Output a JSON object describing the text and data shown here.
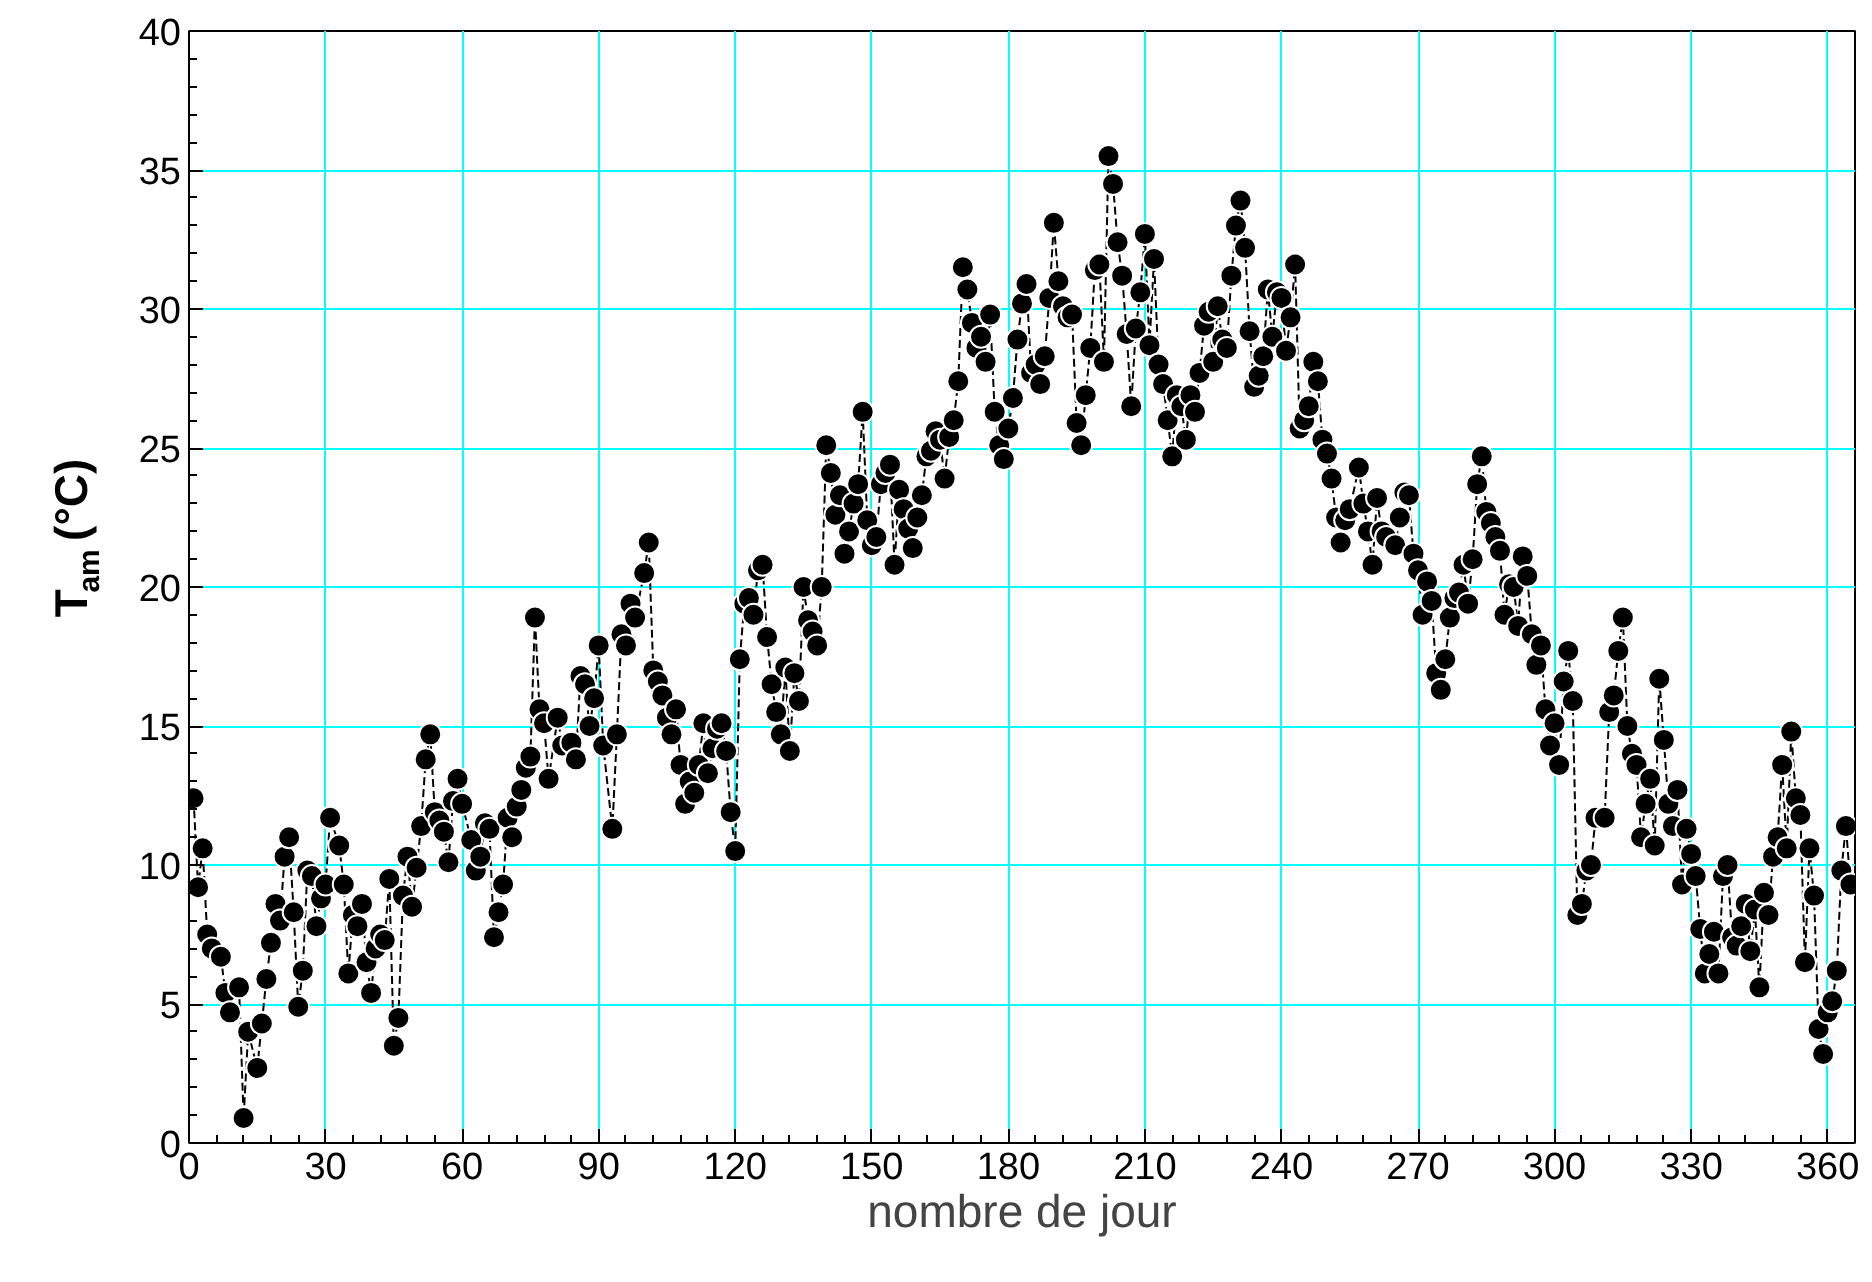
{
  "chart_data": {
    "type": "line",
    "xlabel": "nombre de jour",
    "ylabel": "T$_{am}$ (°C)",
    "xlim": [
      0,
      366
    ],
    "ylim": [
      0,
      40
    ],
    "xticks": [
      0,
      30,
      60,
      90,
      120,
      150,
      180,
      210,
      240,
      270,
      300,
      330,
      360
    ],
    "yticks": [
      0,
      5,
      10,
      15,
      20,
      25,
      30,
      35,
      40
    ],
    "grid": true,
    "marker": "circle",
    "line_style": "dashed",
    "series": [
      {
        "color": "#000000",
        "x": [
          1,
          2,
          3,
          4,
          5,
          7,
          8,
          9,
          11,
          12,
          13,
          15,
          16,
          17,
          18,
          19,
          20,
          21,
          22,
          23,
          24,
          25,
          26,
          27,
          28,
          29,
          30,
          31,
          33,
          34,
          35,
          36,
          37,
          38,
          39,
          40,
          41,
          42,
          43,
          44,
          45,
          46,
          47,
          48,
          49,
          50,
          51,
          52,
          53,
          54,
          55,
          56,
          57,
          58,
          59,
          60,
          62,
          63,
          64,
          65,
          66,
          67,
          68,
          69,
          70,
          71,
          72,
          73,
          74,
          75,
          76,
          77,
          78,
          79,
          81,
          82,
          84,
          85,
          86,
          87,
          88,
          89,
          90,
          91,
          93,
          94,
          95,
          96,
          97,
          98,
          100,
          101,
          102,
          103,
          104,
          105,
          106,
          107,
          108,
          109,
          110,
          111,
          112,
          113,
          114,
          115,
          116,
          117,
          118,
          119,
          120,
          121,
          122,
          123,
          124,
          125,
          126,
          127,
          128,
          129,
          130,
          131,
          132,
          133,
          134,
          135,
          136,
          137,
          138,
          139,
          140,
          141,
          142,
          143,
          144,
          145,
          146,
          147,
          148,
          149,
          150,
          151,
          152,
          153,
          154,
          155,
          156,
          157,
          158,
          159,
          160,
          161,
          162,
          163,
          164,
          165,
          166,
          167,
          168,
          169,
          170,
          171,
          172,
          173,
          174,
          175,
          176,
          177,
          178,
          179,
          180,
          181,
          182,
          183,
          184,
          185,
          186,
          187,
          188,
          189,
          190,
          191,
          192,
          193,
          194,
          195,
          196,
          197,
          198,
          199,
          200,
          201,
          202,
          203,
          204,
          205,
          206,
          207,
          208,
          209,
          210,
          211,
          212,
          213,
          214,
          215,
          216,
          217,
          218,
          219,
          220,
          221,
          222,
          223,
          224,
          225,
          226,
          227,
          228,
          229,
          230,
          231,
          232,
          233,
          234,
          235,
          236,
          237,
          238,
          239,
          240,
          241,
          242,
          243,
          244,
          245,
          246,
          247,
          248,
          249,
          250,
          251,
          252,
          253,
          254,
          255,
          257,
          258,
          259,
          260,
          261,
          262,
          263,
          265,
          266,
          267,
          268,
          269,
          270,
          271,
          272,
          273,
          274,
          275,
          276,
          277,
          278,
          279,
          280,
          281,
          282,
          283,
          284,
          285,
          286,
          287,
          288,
          289,
          290,
          291,
          292,
          293,
          294,
          295,
          296,
          297,
          298,
          299,
          300,
          301,
          302,
          303,
          304,
          305,
          306,
          307,
          308,
          309,
          311,
          312,
          313,
          314,
          315,
          316,
          317,
          318,
          319,
          320,
          321,
          322,
          323,
          324,
          325,
          326,
          327,
          328,
          329,
          330,
          331,
          332,
          333,
          334,
          335,
          336,
          337,
          338,
          339,
          340,
          341,
          342,
          343,
          344,
          345,
          346,
          347,
          348,
          349,
          350,
          351,
          352,
          353,
          354,
          355,
          356,
          357,
          358,
          359,
          360,
          361,
          362,
          363,
          364,
          365
        ],
        "values": [
          12.4,
          9.2,
          10.6,
          7.5,
          7.0,
          6.7,
          5.4,
          4.7,
          5.6,
          0.9,
          4.0,
          2.7,
          4.3,
          5.9,
          7.2,
          8.6,
          8.0,
          10.3,
          11.0,
          8.3,
          4.9,
          6.2,
          9.8,
          9.6,
          7.8,
          8.8,
          9.3,
          11.7,
          10.7,
          9.3,
          6.1,
          8.2,
          7.8,
          8.6,
          6.5,
          5.4,
          7.0,
          7.5,
          7.3,
          9.5,
          3.5,
          4.5,
          8.9,
          10.3,
          8.5,
          9.9,
          11.4,
          13.8,
          14.7,
          11.9,
          11.6,
          11.2,
          10.1,
          12.3,
          13.1,
          12.2,
          10.9,
          9.8,
          10.3,
          11.5,
          11.3,
          7.4,
          8.3,
          9.3,
          11.7,
          11.0,
          12.1,
          12.7,
          13.5,
          13.9,
          18.9,
          15.6,
          15.1,
          13.1,
          15.3,
          14.3,
          14.4,
          13.8,
          16.8,
          16.5,
          15.0,
          16.0,
          17.9,
          14.3,
          11.3,
          14.7,
          18.3,
          17.9,
          19.4,
          18.9,
          20.5,
          21.6,
          17.0,
          16.6,
          16.1,
          15.3,
          14.7,
          15.6,
          13.6,
          12.2,
          13.0,
          12.6,
          13.6,
          15.1,
          13.3,
          14.2,
          14.9,
          15.1,
          14.1,
          11.9,
          10.5,
          17.4,
          19.4,
          19.6,
          19.0,
          20.6,
          20.8,
          18.2,
          16.5,
          15.5,
          14.7,
          17.1,
          14.1,
          16.9,
          15.9,
          20.0,
          18.8,
          18.4,
          17.9,
          20.0,
          25.1,
          24.1,
          22.6,
          23.3,
          21.2,
          22.0,
          23.0,
          23.7,
          26.3,
          22.4,
          21.5,
          21.8,
          23.7,
          24.1,
          24.4,
          20.8,
          23.5,
          22.8,
          22.1,
          21.4,
          22.5,
          23.3,
          24.7,
          24.9,
          25.6,
          25.3,
          23.9,
          25.4,
          26.0,
          27.4,
          31.5,
          30.7,
          29.5,
          28.6,
          29.0,
          28.1,
          29.8,
          26.3,
          25.1,
          24.6,
          25.7,
          26.8,
          28.9,
          30.2,
          30.9,
          27.7,
          28.0,
          27.3,
          28.3,
          30.4,
          33.1,
          31.0,
          30.1,
          29.7,
          29.8,
          25.9,
          25.1,
          26.9,
          28.6,
          31.4,
          31.6,
          28.1,
          35.5,
          34.5,
          32.4,
          31.2,
          29.1,
          26.5,
          29.3,
          30.6,
          32.7,
          28.7,
          31.8,
          28.0,
          27.3,
          26.0,
          24.7,
          26.9,
          26.5,
          25.3,
          26.9,
          26.3,
          27.7,
          29.4,
          29.9,
          28.1,
          30.1,
          28.9,
          28.6,
          31.2,
          33.0,
          33.9,
          32.2,
          29.2,
          27.2,
          27.6,
          28.3,
          30.7,
          29.0,
          30.6,
          30.4,
          28.5,
          29.7,
          31.6,
          25.7,
          26.0,
          26.5,
          28.1,
          27.4,
          25.3,
          24.8,
          23.9,
          22.5,
          21.6,
          22.4,
          22.8,
          24.3,
          23.0,
          22.0,
          20.8,
          23.2,
          22.0,
          21.8,
          21.5,
          22.5,
          23.4,
          23.3,
          21.2,
          20.6,
          19.0,
          20.2,
          19.5,
          16.9,
          16.3,
          17.4,
          18.9,
          19.6,
          19.8,
          20.8,
          19.4,
          21.0,
          23.7,
          24.7,
          22.7,
          22.3,
          21.8,
          21.3,
          19.0,
          20.1,
          20.0,
          18.6,
          21.1,
          20.4,
          18.3,
          17.2,
          17.9,
          15.6,
          14.3,
          15.1,
          13.6,
          16.6,
          17.7,
          15.9,
          8.2,
          8.6,
          9.8,
          10.0,
          11.7,
          11.7,
          15.5,
          16.1,
          17.7,
          18.9,
          15.0,
          14.0,
          13.6,
          11.0,
          12.2,
          13.1,
          10.7,
          16.7,
          14.5,
          12.2,
          11.4,
          12.7,
          9.3,
          11.3,
          10.4,
          9.6,
          7.7,
          6.1,
          6.8,
          7.6,
          6.1,
          9.6,
          10.0,
          7.4,
          7.1,
          7.8,
          8.6,
          6.9,
          8.4,
          5.6,
          9.0,
          8.2,
          10.3,
          11.0,
          13.6,
          10.6,
          14.8,
          12.4,
          11.8,
          6.5,
          10.6,
          8.9,
          4.1,
          3.2,
          4.7,
          5.1,
          6.2,
          9.8,
          11.4,
          9.3
        ]
      }
    ]
  }
}
